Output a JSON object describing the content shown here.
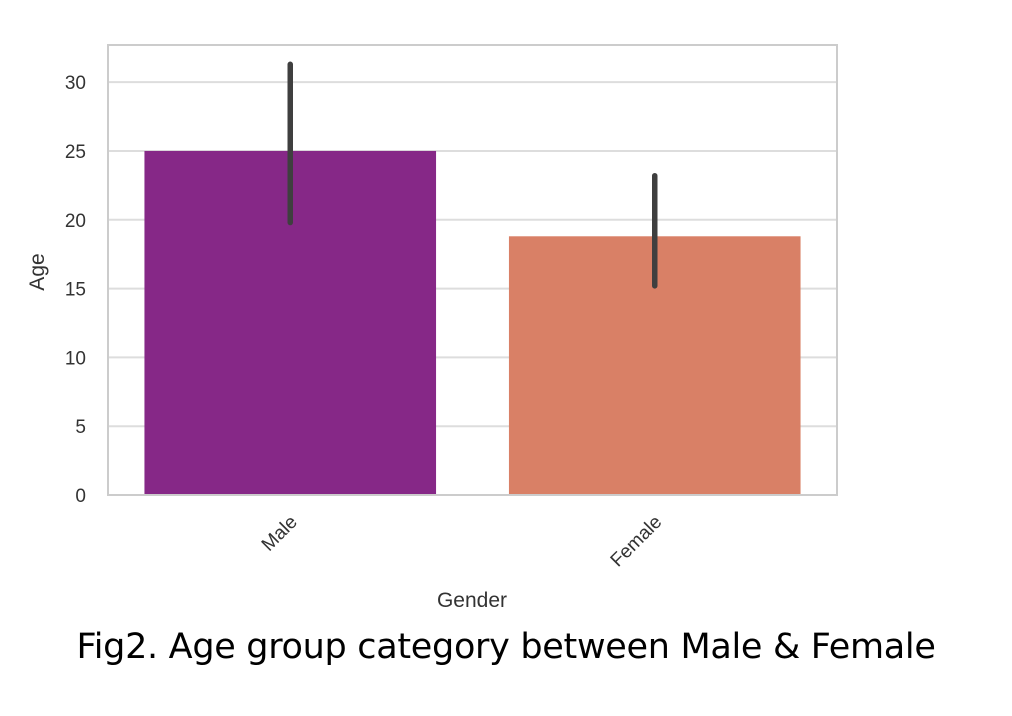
{
  "figure": {
    "caption": "Fig2. Age group category between Male & Female"
  },
  "chart_data": {
    "type": "bar",
    "categories": [
      "Male",
      "Female"
    ],
    "values": [
      25.0,
      18.8
    ],
    "error_bars": [
      {
        "low": 19.8,
        "high": 31.3
      },
      {
        "low": 15.2,
        "high": 23.2
      }
    ],
    "colors": [
      "#862887",
      "#d98066"
    ],
    "error_color": "#3f3f3f",
    "xlabel": "Gender",
    "ylabel": "Age",
    "ylim": [
      0,
      32.7
    ],
    "yticks": [
      0,
      5,
      10,
      15,
      20,
      25,
      30
    ],
    "grid": "y",
    "grid_color": "#dddddd",
    "frame_color": "#cccccc",
    "x_tick_rotation_deg": 45
  }
}
